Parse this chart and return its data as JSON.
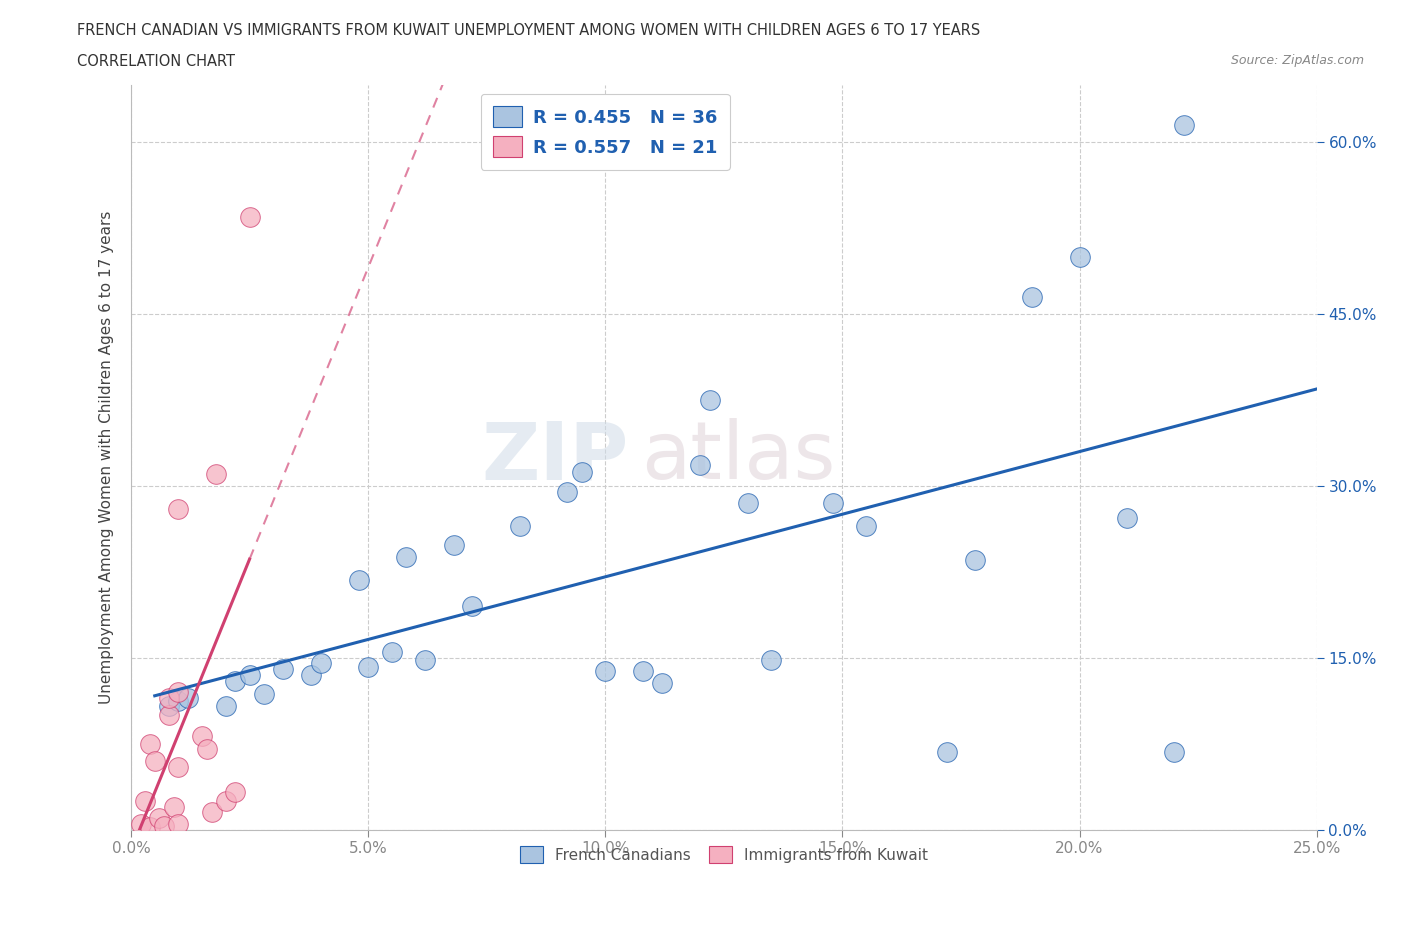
{
  "title_line1": "FRENCH CANADIAN VS IMMIGRANTS FROM KUWAIT UNEMPLOYMENT AMONG WOMEN WITH CHILDREN AGES 6 TO 17 YEARS",
  "title_line2": "CORRELATION CHART",
  "source": "Source: ZipAtlas.com",
  "ylabel": "Unemployment Among Women with Children Ages 6 to 17 years",
  "legend_label1": "French Canadians",
  "legend_label2": "Immigrants from Kuwait",
  "R1": "0.455",
  "N1": "36",
  "R2": "0.557",
  "N2": "21",
  "blue_color": "#aac4e0",
  "blue_line_color": "#2060b0",
  "pink_color": "#f5b0c0",
  "pink_line_color": "#d04070",
  "watermark_top": "ZIP",
  "watermark_bot": "atlas",
  "xlim": [
    0.0,
    0.25
  ],
  "ylim": [
    0.0,
    0.65
  ],
  "xticks": [
    0.0,
    0.05,
    0.1,
    0.15,
    0.2,
    0.25
  ],
  "ytick_values": [
    0.0,
    0.15,
    0.3,
    0.45,
    0.6
  ],
  "ytick_labels": [
    "0.0%",
    "15.0%",
    "30.0%",
    "45.0%",
    "60.0%"
  ],
  "xtick_labels": [
    "0.0%",
    "5.0%",
    "10.0%",
    "15.0%",
    "20.0%",
    "25.0%"
  ],
  "blue_x": [
    0.008,
    0.01,
    0.012,
    0.02,
    0.022,
    0.025,
    0.028,
    0.032,
    0.038,
    0.04,
    0.048,
    0.05,
    0.055,
    0.058,
    0.062,
    0.068,
    0.072,
    0.082,
    0.092,
    0.095,
    0.1,
    0.108,
    0.112,
    0.12,
    0.122,
    0.13,
    0.135,
    0.148,
    0.155,
    0.172,
    0.178,
    0.19,
    0.2,
    0.21,
    0.22,
    0.222
  ],
  "blue_y": [
    0.108,
    0.112,
    0.115,
    0.108,
    0.13,
    0.135,
    0.118,
    0.14,
    0.135,
    0.145,
    0.218,
    0.142,
    0.155,
    0.238,
    0.148,
    0.248,
    0.195,
    0.265,
    0.295,
    0.312,
    0.138,
    0.138,
    0.128,
    0.318,
    0.375,
    0.285,
    0.148,
    0.285,
    0.265,
    0.068,
    0.235,
    0.465,
    0.5,
    0.272,
    0.068,
    0.615
  ],
  "pink_x": [
    0.002,
    0.003,
    0.004,
    0.004,
    0.005,
    0.006,
    0.007,
    0.008,
    0.008,
    0.009,
    0.01,
    0.01,
    0.01,
    0.01,
    0.015,
    0.016,
    0.017,
    0.018,
    0.02,
    0.022,
    0.025
  ],
  "pink_y": [
    0.005,
    0.025,
    0.002,
    0.075,
    0.06,
    0.01,
    0.003,
    0.1,
    0.115,
    0.02,
    0.055,
    0.12,
    0.28,
    0.005,
    0.082,
    0.07,
    0.015,
    0.31,
    0.025,
    0.033,
    0.535
  ],
  "pink_line_x_start": 0.001,
  "pink_line_x_end_solid": 0.025,
  "pink_line_x_end_dash": 0.095,
  "blue_line_x_start": 0.005,
  "blue_line_x_end": 0.25
}
